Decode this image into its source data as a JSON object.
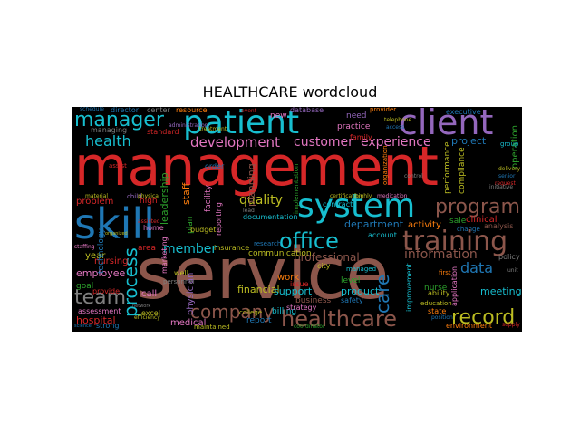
{
  "title": "HEALTHCARE wordcloud",
  "colors": {
    "red": "#d62728",
    "cyan": "#17becf",
    "purple": "#9467bd",
    "brown": "#8c564b",
    "blue": "#1f77b4",
    "pink": "#e377c2",
    "olive": "#bcbd22",
    "orange": "#ff7f0e",
    "green": "#2ca02c",
    "gray": "#7f7f7f"
  },
  "words": {
    "service": "service",
    "management": "management",
    "skill": "skill",
    "patient": "patient",
    "client": "client",
    "system": "system",
    "training": "training",
    "office": "office",
    "healthcare": "healthcare",
    "manager": "manager",
    "team": "team",
    "program": "program",
    "record": "record",
    "company": "company",
    "process": "process",
    "care": "care",
    "health": "health",
    "development": "development",
    "customer": "customer",
    "experience": "experience",
    "information": "information",
    "quality": "quality",
    "member": "member",
    "department": "department",
    "professional": "professional",
    "data": "data",
    "financial": "financial",
    "support": "support",
    "product": "product",
    "meeting": "meeting",
    "project": "project",
    "leadership": "leadership",
    "planning": "planning",
    "staff": "staff",
    "employee": "employee",
    "hospital": "hospital",
    "nursing": "nursing",
    "problem": "problem",
    "communication": "communication",
    "clinical": "clinical",
    "activity": "activity",
    "medical": "medical",
    "physician": "physician",
    "operation": "operation",
    "performance": "performance",
    "billing": "billing",
    "business": "business",
    "work": "work",
    "strategy": "strategy",
    "goal": "goal",
    "call": "call",
    "provide": "provide",
    "assessment": "assessment",
    "report": "report",
    "year": "year",
    "area": "area",
    "plan": "plan",
    "high": "high",
    "sale": "sale",
    "level": "level",
    "nurse": "nurse",
    "account": "account",
    "technology": "technology",
    "facility": "facility",
    "reporting": "reporting",
    "documentation": "documentation",
    "compliance": "compliance",
    "resource": "resource",
    "database": "database",
    "need": "need",
    "practice": "practice",
    "executive": "executive",
    "director": "director",
    "standard": "standard",
    "center": "center",
    "insurance": "insurance",
    "state": "state",
    "ability": "ability",
    "environment": "environment",
    "excel": "excel",
    "maintained": "maintained",
    "strong": "strong",
    "home": "home",
    "order": "order",
    "contract": "contract",
    "issue": "issue",
    "analysis": "analysis",
    "city": "city",
    "improvement": "improvement",
    "policy": "policy",
    "family": "family",
    "application": "application",
    "budget": "budget",
    "safety": "safety",
    "marketing": "marketing",
    "new": "new",
    "well": "well",
    "personnel": "personnel",
    "implementation": "implementation",
    "managing": "managing",
    "assist": "assist",
    "child": "child",
    "schedule": "schedule",
    "research": "research",
    "change": "change",
    "level2": "level",
    "managed": "managed",
    "education": "education",
    "group": "group",
    "first": "first",
    "college": "college",
    "administration": "administration",
    "treatment": "treatment",
    "organization": "organization",
    "physical": "physical",
    "lead": "lead",
    "provider": "provider",
    "telephone": "telephone",
    "access": "access",
    "certification": "certification",
    "highly": "highly",
    "medication": "medication",
    "control": "control",
    "senior": "senior",
    "request": "request",
    "delivery": "delivery",
    "initiative": "initiative",
    "unit": "unit",
    "position": "position",
    "supply": "supply",
    "coordinator": "coordinator",
    "network": "network",
    "efficiency": "efficiency",
    "science": "science",
    "organized": "organized",
    "staffing": "staffing",
    "material": "material",
    "assisted": "assisted",
    "event": "event"
  }
}
